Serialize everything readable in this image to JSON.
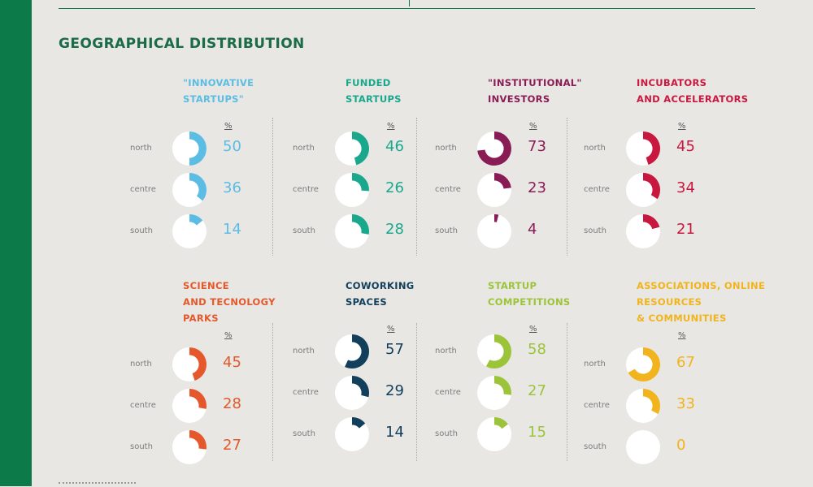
{
  "page": {
    "title": "GEOGRAPHICAL DISTRIBUTION",
    "unit": "%"
  },
  "chart_data": [
    {
      "type": "donut",
      "title": "\"INNOVATIVE\nSTARTUPS\"",
      "color": "#5bbde3",
      "categories": [
        "north",
        "centre",
        "south"
      ],
      "values": [
        50,
        36,
        14
      ]
    },
    {
      "type": "donut",
      "title": "FUNDED\nSTARTUPS",
      "color": "#1aa88d",
      "categories": [
        "north",
        "centre",
        "south"
      ],
      "values": [
        46,
        26,
        28
      ]
    },
    {
      "type": "donut",
      "title": "\"INSTITUTIONAL\"\nINVESTORS",
      "color": "#8a1c55",
      "categories": [
        "north",
        "centre",
        "south"
      ],
      "values": [
        73,
        23,
        4
      ]
    },
    {
      "type": "donut",
      "title": "INCUBATORS\nAND ACCELERATORS",
      "color": "#c8183f",
      "categories": [
        "north",
        "centre",
        "south"
      ],
      "values": [
        45,
        34,
        21
      ]
    },
    {
      "type": "donut",
      "title": "SCIENCE\nAND TECNOLOGY\nPARKS",
      "color": "#e4582b",
      "categories": [
        "north",
        "centre",
        "south"
      ],
      "values": [
        45,
        28,
        27
      ]
    },
    {
      "type": "donut",
      "title": "COWORKING\nSPACES",
      "color": "#123f5c",
      "categories": [
        "north",
        "centre",
        "south"
      ],
      "values": [
        57,
        29,
        14
      ]
    },
    {
      "type": "donut",
      "title": "STARTUP\nCOMPETITIONS",
      "color": "#9cc43a",
      "categories": [
        "north",
        "centre",
        "south"
      ],
      "values": [
        58,
        27,
        15
      ]
    },
    {
      "type": "donut",
      "title": "ASSOCIATIONS, ONLINE\nRESOURCES\n& COMMUNITIES",
      "color": "#f1b41d",
      "categories": [
        "north",
        "centre",
        "south"
      ],
      "values": [
        67,
        33,
        0
      ]
    }
  ]
}
